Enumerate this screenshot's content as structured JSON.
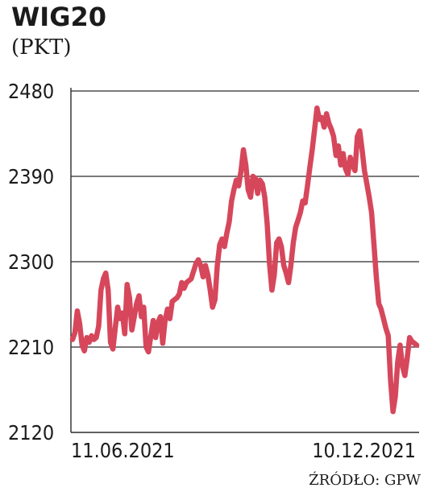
{
  "header": {
    "title": "WIG20",
    "unit": "(PKT)"
  },
  "footer": {
    "source": "ŹRÓDŁO: GPW"
  },
  "colors": {
    "line": "#d6475b",
    "grid": "#2b2b2b",
    "text": "#1b1b1b"
  },
  "chart_data": {
    "type": "line",
    "title": "WIG20",
    "ylabel": "(PKT)",
    "ylim": [
      2120,
      2480
    ],
    "yticks": [
      2120,
      2210,
      2300,
      2390,
      2480
    ],
    "xticks": [
      "11.06.2021",
      "10.12.2021"
    ],
    "grid": "horizontal",
    "series": [
      {
        "values": [
          2218,
          2225,
          2248,
          2235,
          2212,
          2206,
          2220,
          2215,
          2222,
          2218,
          2220,
          2232,
          2270,
          2282,
          2288,
          2270,
          2215,
          2208,
          2230,
          2252,
          2240,
          2246,
          2224,
          2276,
          2262,
          2228,
          2242,
          2256,
          2264,
          2242,
          2252,
          2210,
          2205,
          2222,
          2238,
          2220,
          2236,
          2242,
          2214,
          2238,
          2250,
          2240,
          2258,
          2260,
          2262,
          2266,
          2278,
          2272,
          2278,
          2280,
          2282,
          2290,
          2298,
          2302,
          2296,
          2284,
          2296,
          2286,
          2270,
          2252,
          2260,
          2296,
          2318,
          2324,
          2316,
          2330,
          2342,
          2364,
          2376,
          2386,
          2380,
          2396,
          2418,
          2402,
          2376,
          2368,
          2390,
          2388,
          2372,
          2386,
          2382,
          2368,
          2340,
          2298,
          2270,
          2286,
          2320,
          2324,
          2316,
          2296,
          2288,
          2278,
          2296,
          2320,
          2336,
          2344,
          2352,
          2364,
          2362,
          2380,
          2400,
          2418,
          2440,
          2462,
          2450,
          2452,
          2442,
          2456,
          2446,
          2440,
          2432,
          2412,
          2422,
          2402,
          2414,
          2398,
          2392,
          2410,
          2402,
          2396,
          2432,
          2438,
          2418,
          2396,
          2382,
          2368,
          2352,
          2318,
          2284,
          2256,
          2250,
          2240,
          2230,
          2222,
          2175,
          2142,
          2158,
          2194,
          2212,
          2190,
          2180,
          2198,
          2220,
          2216,
          2214,
          2212
        ]
      }
    ]
  }
}
